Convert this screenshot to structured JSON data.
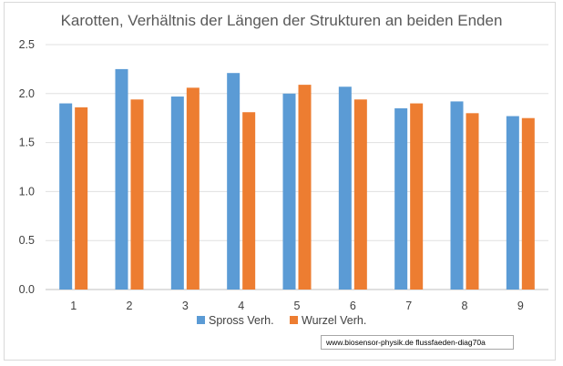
{
  "chart_data": {
    "type": "bar",
    "title": "Karotten, Verhältnis der Längen der Strukturen an beiden Enden",
    "xlabel": "",
    "ylabel": "",
    "ylim": [
      0,
      2.5
    ],
    "yticks": [
      "0.0",
      "0.5",
      "1.0",
      "1.5",
      "2.0",
      "2.5"
    ],
    "grid": true,
    "legend_position": "bottom",
    "categories": [
      "1",
      "2",
      "3",
      "4",
      "5",
      "6",
      "7",
      "8",
      "9"
    ],
    "series": [
      {
        "name": "Spross Verh.",
        "color": "#5b9bd5",
        "values": [
          1.9,
          2.25,
          1.97,
          2.21,
          2.0,
          2.07,
          1.85,
          1.92,
          1.77
        ]
      },
      {
        "name": "Wurzel Verh.",
        "color": "#ed7d31",
        "values": [
          1.86,
          1.94,
          2.06,
          1.81,
          2.09,
          1.94,
          1.9,
          1.8,
          1.75
        ]
      }
    ]
  },
  "watermark": "www.biosensor-physik.de  flussfaeden-diag70a"
}
